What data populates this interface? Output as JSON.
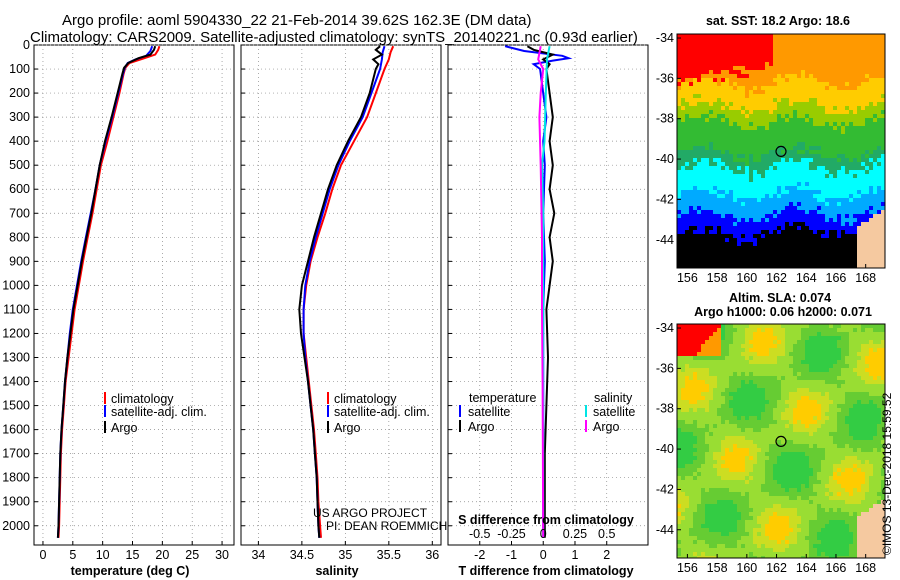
{
  "figure": {
    "title_line1": "Argo profile: aoml 5904330_22 21-Feb-2014 39.62S 162.3E (DM data)",
    "title_line2": "Climatology: CARS2009. Satellite-adjusted climatology: synTS_20140221.nc (0.93d earlier)",
    "credit": "©IMOS 13-Dec-2018 15:59:52",
    "project_line1": "US ARGO PROJECT",
    "project_line2": "PI: DEAN ROEMMICH",
    "colors": {
      "climatology": "#ff0000",
      "satellite": "#0000ff",
      "argo": "#000000",
      "sat_salinity": "#00e5e5",
      "clim_salinity": "#ff00ff"
    }
  },
  "chart_data": [
    {
      "type": "line",
      "id": "temperature",
      "xlabel": "temperature (deg C)",
      "xlim": [
        -1.5,
        32
      ],
      "xticks": [
        0,
        5,
        10,
        15,
        20,
        25,
        30
      ],
      "ylim": [
        2080,
        0
      ],
      "yticks": [
        0,
        100,
        200,
        300,
        400,
        500,
        600,
        700,
        800,
        900,
        1000,
        1100,
        1200,
        1300,
        1400,
        1500,
        1600,
        1700,
        1800,
        1900,
        2000
      ],
      "legend": [
        "climatology",
        "satellite-adj. clim.",
        "Argo"
      ],
      "series": [
        {
          "name": "climatology",
          "color": "#ff0000",
          "points": [
            [
              19.5,
              5
            ],
            [
              19.3,
              20
            ],
            [
              18.8,
              40
            ],
            [
              17.0,
              55
            ],
            [
              14.5,
              75
            ],
            [
              13.8,
              95
            ],
            [
              13.5,
              120
            ],
            [
              12.8,
              200
            ],
            [
              11.8,
              300
            ],
            [
              10.8,
              400
            ],
            [
              9.7,
              500
            ],
            [
              9.0,
              600
            ],
            [
              8.3,
              700
            ],
            [
              7.5,
              800
            ],
            [
              6.7,
              900
            ],
            [
              6.0,
              1000
            ],
            [
              5.3,
              1100
            ],
            [
              4.8,
              1200
            ],
            [
              4.3,
              1300
            ],
            [
              3.8,
              1400
            ],
            [
              3.5,
              1500
            ],
            [
              3.2,
              1600
            ],
            [
              3.0,
              1700
            ],
            [
              2.9,
              1800
            ],
            [
              2.8,
              1900
            ],
            [
              2.7,
              2000
            ],
            [
              2.6,
              2050
            ]
          ]
        },
        {
          "name": "satellite-adj. clim.",
          "color": "#0000ff",
          "points": [
            [
              18.3,
              5
            ],
            [
              18.0,
              25
            ],
            [
              17.3,
              45
            ],
            [
              15.5,
              60
            ],
            [
              14.2,
              75
            ],
            [
              13.7,
              95
            ],
            [
              13.4,
              120
            ],
            [
              12.6,
              200
            ],
            [
              11.6,
              300
            ],
            [
              10.5,
              400
            ],
            [
              9.5,
              500
            ],
            [
              8.8,
              600
            ],
            [
              8.0,
              700
            ],
            [
              7.2,
              800
            ],
            [
              6.4,
              900
            ],
            [
              5.7,
              1000
            ],
            [
              5.0,
              1100
            ],
            [
              4.5,
              1200
            ],
            [
              4.1,
              1300
            ],
            [
              3.7,
              1400
            ],
            [
              3.4,
              1500
            ],
            [
              3.1,
              1600
            ],
            [
              2.9,
              1700
            ],
            [
              2.8,
              1800
            ],
            [
              2.7,
              1900
            ],
            [
              2.6,
              2000
            ],
            [
              2.5,
              2050
            ]
          ]
        },
        {
          "name": "Argo",
          "color": "#000000",
          "points": [
            [
              18.8,
              5
            ],
            [
              18.6,
              20
            ],
            [
              18.0,
              40
            ],
            [
              16.0,
              55
            ],
            [
              14.3,
              75
            ],
            [
              13.6,
              95
            ],
            [
              13.3,
              120
            ],
            [
              12.5,
              200
            ],
            [
              11.5,
              300
            ],
            [
              10.4,
              400
            ],
            [
              9.5,
              500
            ],
            [
              8.8,
              600
            ],
            [
              8.1,
              700
            ],
            [
              7.3,
              800
            ],
            [
              6.5,
              900
            ],
            [
              5.8,
              1000
            ],
            [
              5.1,
              1100
            ],
            [
              4.6,
              1200
            ],
            [
              4.1,
              1300
            ],
            [
              3.7,
              1400
            ],
            [
              3.4,
              1500
            ],
            [
              3.1,
              1600
            ],
            [
              2.9,
              1700
            ],
            [
              2.8,
              1800
            ],
            [
              2.7,
              1900
            ],
            [
              2.6,
              2000
            ],
            [
              2.5,
              2050
            ]
          ]
        }
      ]
    },
    {
      "type": "line",
      "id": "salinity",
      "xlabel": "salinity",
      "xlim": [
        33.8,
        36.1
      ],
      "xticks": [
        34,
        34.5,
        35,
        35.5,
        36
      ],
      "ylim": [
        2080,
        0
      ],
      "legend": [
        "climatology",
        "satellite-adj. clim.",
        "Argo"
      ],
      "series": [
        {
          "name": "climatology",
          "color": "#ff0000",
          "points": [
            [
              35.55,
              5
            ],
            [
              35.52,
              30
            ],
            [
              35.5,
              60
            ],
            [
              35.45,
              100
            ],
            [
              35.35,
              200
            ],
            [
              35.25,
              300
            ],
            [
              35.1,
              400
            ],
            [
              34.95,
              500
            ],
            [
              34.85,
              600
            ],
            [
              34.77,
              700
            ],
            [
              34.68,
              800
            ],
            [
              34.6,
              900
            ],
            [
              34.55,
              1000
            ],
            [
              34.52,
              1100
            ],
            [
              34.52,
              1200
            ],
            [
              34.55,
              1300
            ],
            [
              34.58,
              1400
            ],
            [
              34.61,
              1500
            ],
            [
              34.64,
              1600
            ],
            [
              34.66,
              1700
            ],
            [
              34.68,
              1800
            ],
            [
              34.69,
              1900
            ],
            [
              34.71,
              2000
            ],
            [
              34.72,
              2050
            ]
          ]
        },
        {
          "name": "satellite-adj. clim.",
          "color": "#0000ff",
          "points": [
            [
              35.45,
              5
            ],
            [
              35.43,
              30
            ],
            [
              35.42,
              60
            ],
            [
              35.4,
              100
            ],
            [
              35.3,
              200
            ],
            [
              35.2,
              300
            ],
            [
              35.05,
              400
            ],
            [
              34.92,
              500
            ],
            [
              34.82,
              600
            ],
            [
              34.74,
              700
            ],
            [
              34.66,
              800
            ],
            [
              34.59,
              900
            ],
            [
              34.54,
              1000
            ],
            [
              34.52,
              1100
            ],
            [
              34.52,
              1200
            ],
            [
              34.54,
              1300
            ],
            [
              34.57,
              1400
            ],
            [
              34.6,
              1500
            ],
            [
              34.63,
              1600
            ],
            [
              34.65,
              1700
            ],
            [
              34.67,
              1800
            ],
            [
              34.68,
              1900
            ],
            [
              34.69,
              2000
            ],
            [
              34.7,
              2050
            ]
          ]
        },
        {
          "name": "Argo",
          "color": "#000000",
          "points": [
            [
              35.4,
              5
            ],
            [
              35.35,
              20
            ],
            [
              35.42,
              40
            ],
            [
              35.32,
              60
            ],
            [
              35.38,
              80
            ],
            [
              35.35,
              100
            ],
            [
              35.28,
              200
            ],
            [
              35.18,
              300
            ],
            [
              35.03,
              400
            ],
            [
              34.9,
              500
            ],
            [
              34.8,
              600
            ],
            [
              34.72,
              700
            ],
            [
              34.64,
              800
            ],
            [
              34.57,
              900
            ],
            [
              34.5,
              1000
            ],
            [
              34.47,
              1100
            ],
            [
              34.49,
              1200
            ],
            [
              34.53,
              1300
            ],
            [
              34.57,
              1400
            ],
            [
              34.6,
              1500
            ],
            [
              34.63,
              1600
            ],
            [
              34.65,
              1700
            ],
            [
              34.67,
              1800
            ],
            [
              34.68,
              1900
            ],
            [
              34.69,
              2000
            ],
            [
              34.7,
              2050
            ]
          ]
        }
      ]
    },
    {
      "type": "line",
      "id": "differences",
      "xlabel": "T difference from climatology",
      "xlabel_top": "S difference from climatology",
      "xlim": [
        -3,
        3.3
      ],
      "xticks": [
        -2,
        -1,
        0,
        1,
        2
      ],
      "s_xticks": [
        -0.5,
        -0.25,
        0,
        0.25,
        0.5
      ],
      "s_scale": 4,
      "ylim": [
        2080,
        0
      ],
      "legend_temperature_title": "temperature",
      "legend_salinity_title": "salinity",
      "legend_temperature": [
        "satellite",
        "Argo"
      ],
      "legend_salinity": [
        "satellite",
        "Argo"
      ],
      "series": [
        {
          "name": "T satellite",
          "color": "#0000ff",
          "points": [
            [
              -1.2,
              5
            ],
            [
              -0.6,
              25
            ],
            [
              0.6,
              45
            ],
            [
              0.8,
              55
            ],
            [
              0.3,
              65
            ],
            [
              -0.3,
              80
            ],
            [
              -0.1,
              100
            ],
            [
              0.0,
              200
            ],
            [
              0.1,
              300
            ],
            [
              0.0,
              400
            ],
            [
              0.05,
              500
            ],
            [
              0.0,
              700
            ],
            [
              0.05,
              900
            ],
            [
              0.0,
              1100
            ],
            [
              0.0,
              1400
            ],
            [
              0.0,
              1700
            ],
            [
              0.0,
              2050
            ]
          ]
        },
        {
          "name": "T Argo",
          "color": "#000000",
          "points": [
            [
              -0.5,
              5
            ],
            [
              -0.3,
              20
            ],
            [
              0.3,
              40
            ],
            [
              0.0,
              60
            ],
            [
              0.2,
              80
            ],
            [
              0.1,
              100
            ],
            [
              0.2,
              200
            ],
            [
              0.3,
              300
            ],
            [
              0.2,
              400
            ],
            [
              0.3,
              500
            ],
            [
              0.2,
              600
            ],
            [
              0.35,
              700
            ],
            [
              0.2,
              800
            ],
            [
              0.3,
              900
            ],
            [
              0.2,
              1000
            ],
            [
              0.1,
              1100
            ],
            [
              0.15,
              1300
            ],
            [
              0.1,
              1500
            ],
            [
              0.05,
              1700
            ],
            [
              0.05,
              2050
            ]
          ]
        },
        {
          "name": "S satellite",
          "color": "#00e5e5",
          "points": [
            [
              0.05,
              5
            ],
            [
              0.03,
              60
            ],
            [
              0.02,
              200
            ],
            [
              0.01,
              400
            ],
            [
              -0.01,
              500
            ],
            [
              0.0,
              700
            ],
            [
              0.0,
              900
            ],
            [
              0.0,
              1200
            ],
            [
              0.0,
              1600
            ],
            [
              0.0,
              2050
            ]
          ]
        },
        {
          "name": "S Argo",
          "color": "#ff00ff",
          "points": [
            [
              -0.02,
              5
            ],
            [
              -0.04,
              60
            ],
            [
              0.0,
              100
            ],
            [
              -0.02,
              200
            ],
            [
              -0.03,
              300
            ],
            [
              -0.02,
              500
            ],
            [
              -0.01,
              800
            ],
            [
              -0.01,
              1100
            ],
            [
              -0.005,
              1400
            ],
            [
              0.0,
              2050
            ]
          ]
        }
      ]
    },
    {
      "type": "heatmap",
      "id": "sst-map",
      "title": "sat. SST: 18.2  Argo: 18.6",
      "xticks": [
        156,
        158,
        160,
        162,
        164,
        166,
        168
      ],
      "yticks": [
        -34,
        -36,
        -38,
        -40,
        -42,
        -44
      ],
      "xlim": [
        155.3,
        169.3
      ],
      "ylim": [
        -45.4,
        -33.8
      ],
      "marker": [
        162.3,
        -39.62
      ]
    },
    {
      "type": "heatmap",
      "id": "sla-map",
      "title_line1": "Altim. SLA: 0.074",
      "title_line2": "Argo h1000: 0.06 h2000: 0.071",
      "xticks": [
        156,
        158,
        160,
        162,
        164,
        166,
        168
      ],
      "yticks": [
        -34,
        -36,
        -38,
        -40,
        -42,
        -44
      ],
      "xlim": [
        155.3,
        169.3
      ],
      "ylim": [
        -45.4,
        -33.8
      ],
      "marker": [
        162.3,
        -39.62
      ]
    }
  ]
}
